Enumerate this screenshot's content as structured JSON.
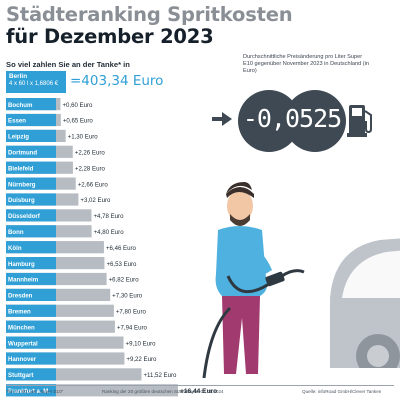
{
  "title_line1": "Städteranking Spritkosten",
  "title_line2": "für Dezember 2023",
  "subtitle": "So viel zahlen Sie an der Tanke* in",
  "berlin": {
    "city": "Berlin",
    "formula": "4 x 60 l x 1,6806 €",
    "total": "=403,34 Euro"
  },
  "price_change": {
    "note": "Durchschnittliche Preisänderung pro Liter Super E10 gegenüber November 2023 in Deutschland (in Euro)",
    "value": "-0,0525"
  },
  "chart_data": {
    "type": "bar",
    "orientation": "horizontal",
    "unit": "Euro",
    "categories": [
      "Bochum",
      "Essen",
      "Leipzig",
      "Dortmund",
      "Bielefeld",
      "Nürnberg",
      "Duisburg",
      "Düsseldorf",
      "Bonn",
      "Köln",
      "Hamburg",
      "Mannheim",
      "Dresden",
      "Bremen",
      "München",
      "Wuppertal",
      "Hannover",
      "Stuttgart",
      "Frankfurt a. M."
    ],
    "values": [
      0.6,
      0.65,
      1.3,
      2.26,
      2.28,
      2.66,
      3.02,
      4.78,
      4.8,
      6.46,
      6.53,
      6.82,
      7.3,
      7.8,
      7.94,
      9.1,
      9.22,
      11.52,
      16.44
    ],
    "value_labels": [
      "+0,60 Euro",
      "+0,65 Euro",
      "+1,30 Euro",
      "+2,26 Euro",
      "+2,28 Euro",
      "+2,66 Euro",
      "+3,02 Euro",
      "+4,78 Euro",
      "+4,80 Euro",
      "+6,46 Euro",
      "+6,53 Euro",
      "+6,82 Euro",
      "+7,30 Euro",
      "+7,80 Euro",
      "+7,94 Euro",
      "+9,10 Euro",
      "+9,22 Euro",
      "+11,52 Euro",
      "+16,44 Euro"
    ],
    "bar_color": "#b7bcc2",
    "label_box_color": "#2f9fd6",
    "highlight": "Frankfurt a. M."
  },
  "footer": {
    "left": "*für 4 x 60 Liter „Super E10\"",
    "center": "Ranking der 20 größten deutschen Städte",
    "date": "Stand: 01.01.2024",
    "source": "Quelle: infoRoad GmbH/Clever Tanken"
  },
  "colors": {
    "accent": "#2f9fd6",
    "dark": "#3e4953",
    "bar": "#b7bcc2"
  }
}
